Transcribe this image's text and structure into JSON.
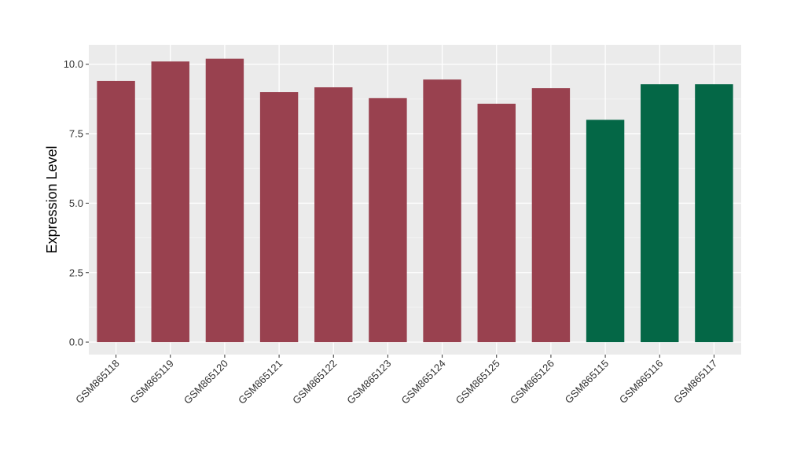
{
  "chart_data": {
    "type": "bar",
    "title": "",
    "xlabel": "",
    "ylabel": "Expression Level",
    "categories": [
      "GSM865118",
      "GSM865119",
      "GSM865120",
      "GSM865121",
      "GSM865122",
      "GSM865123",
      "GSM865124",
      "GSM865125",
      "GSM865126",
      "GSM865115",
      "GSM865116",
      "GSM865117"
    ],
    "values": [
      9.4,
      10.1,
      10.2,
      9.0,
      9.17,
      8.78,
      9.45,
      8.58,
      9.14,
      8.0,
      9.28,
      9.28
    ],
    "groups": [
      "a",
      "a",
      "a",
      "a",
      "a",
      "a",
      "a",
      "a",
      "a",
      "b",
      "b",
      "b"
    ],
    "colors": {
      "a": "#99414f",
      "b": "#046746"
    },
    "ylim": [
      -0.45,
      10.7
    ],
    "yticks": [
      0.0,
      2.5,
      5.0,
      7.5,
      10.0
    ],
    "ytick_labels": [
      "0.0",
      "2.5",
      "5.0",
      "7.5",
      "10.0"
    ],
    "grid": true,
    "legend": "none",
    "background": "#ebebeb"
  }
}
